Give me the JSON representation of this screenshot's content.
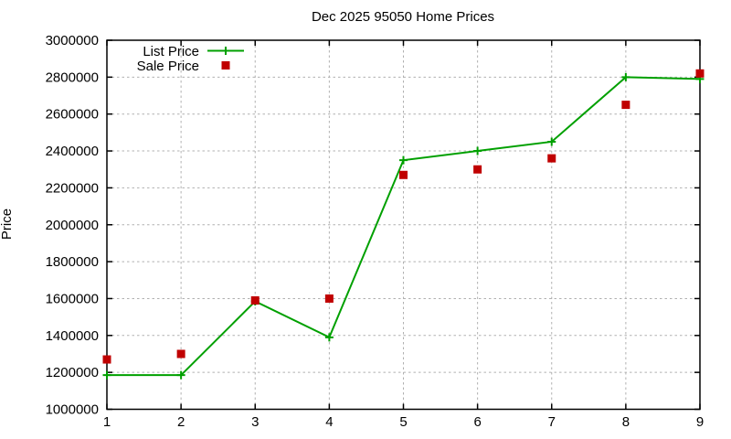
{
  "chart_data": {
    "type": "line",
    "title": "Dec 2025 95050 Home Prices",
    "xlabel": "",
    "ylabel": "Price",
    "x": [
      1,
      2,
      3,
      4,
      5,
      6,
      7,
      8,
      9
    ],
    "xlim": [
      1,
      9
    ],
    "ylim": [
      1000000,
      3000000
    ],
    "xticks": [
      1,
      2,
      3,
      4,
      5,
      6,
      7,
      8,
      9
    ],
    "yticks": [
      1000000,
      1200000,
      1400000,
      1600000,
      1800000,
      2000000,
      2200000,
      2400000,
      2600000,
      2800000,
      3000000
    ],
    "grid": true,
    "legend_position": "top-left-inside",
    "series": [
      {
        "name": "List Price",
        "type": "linespoints",
        "marker": "plus",
        "color": "#00a000",
        "values": [
          1185000,
          1185000,
          1585000,
          1390000,
          2350000,
          2400000,
          2450000,
          2800000,
          2790000
        ]
      },
      {
        "name": "Sale Price",
        "type": "points",
        "marker": "square",
        "color": "#c00000",
        "values": [
          1270000,
          1300000,
          1590000,
          1600000,
          2270000,
          2300000,
          2360000,
          2650000,
          2820000
        ]
      }
    ]
  },
  "colors": {
    "background": "#ffffff",
    "axis": "#000000",
    "text": "#000000",
    "grid": "#b0b0b0",
    "list_price": "#00a000",
    "sale_price": "#c00000"
  }
}
